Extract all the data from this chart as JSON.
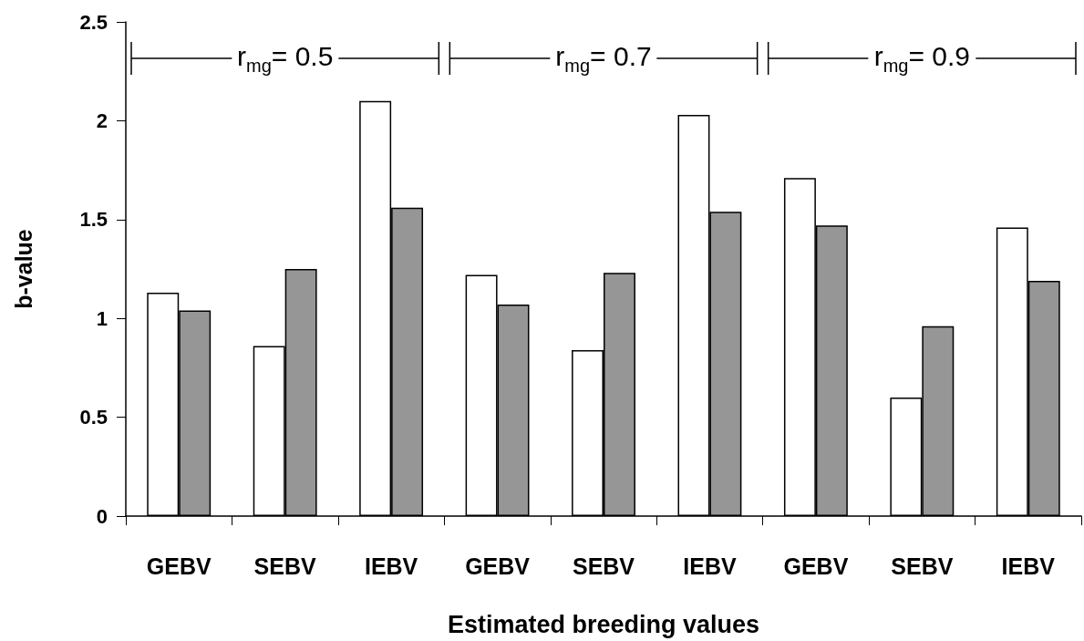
{
  "chart_data": {
    "type": "bar",
    "xlabel": "Estimated breeding values",
    "ylabel": "b-value",
    "categories": [
      "GEBV",
      "SEBV",
      "IEBV",
      "GEBV",
      "SEBV",
      "IEBV",
      "GEBV",
      "SEBV",
      "IEBV"
    ],
    "series": [
      {
        "color": "#ffffff",
        "values": [
          1.13,
          0.86,
          2.1,
          1.22,
          0.84,
          2.03,
          1.71,
          0.6,
          1.46
        ]
      },
      {
        "color": "#969696",
        "values": [
          1.04,
          1.25,
          1.56,
          1.07,
          1.23,
          1.54,
          1.47,
          0.96,
          1.19
        ]
      }
    ],
    "ylim": [
      0,
      2.5
    ],
    "yticks": [
      0,
      0.5,
      1,
      1.5,
      2,
      2.5
    ],
    "annotations": [
      "r$_{mg}$= 0.5",
      "r$_{mg}$= 0.7",
      "r$_{mg}$= 0.9"
    ]
  }
}
